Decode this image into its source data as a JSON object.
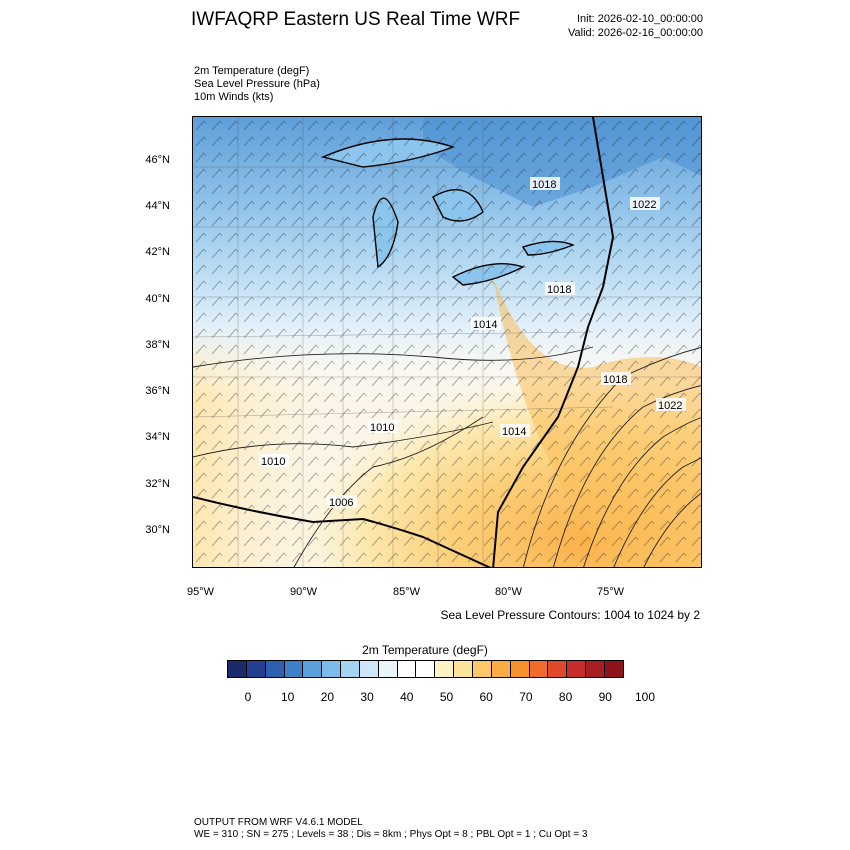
{
  "header": {
    "title": "IWFAQRP Eastern US Real Time WRF",
    "init": "Init: 2026-02-10_00:00:00",
    "valid": "Valid: 2026-02-16_00:00:00"
  },
  "fields": [
    "2m Temperature   (degF)",
    "Sea Level Pressure   (hPa)",
    "10m Winds   (kts)"
  ],
  "map": {
    "lat_labels": [
      "46°N",
      "44°N",
      "42°N",
      "40°N",
      "38°N",
      "36°N",
      "34°N",
      "32°N",
      "30°N"
    ],
    "lon_labels": [
      "95°W",
      "90°W",
      "85°W",
      "80°W",
      "75°W"
    ],
    "pressure_labels": [
      "1018",
      "1022",
      "1018",
      "1014",
      "1018",
      "1022",
      "1010",
      "1014",
      "1010",
      "1006"
    ],
    "contours_note": "Sea Level Pressure Contours: 1004 to 1024 by 2"
  },
  "colorbar": {
    "title": "2m Temperature  (degF)",
    "colors": [
      "#1b2a6b",
      "#233f8f",
      "#2f5fb0",
      "#3e80c8",
      "#5aa0dc",
      "#7dbcea",
      "#a5d3f2",
      "#cde6f8",
      "#eaf4fb",
      "#ffffff",
      "#ffffff",
      "#fff3c4",
      "#fde49a",
      "#fcc86a",
      "#fbac45",
      "#f7902e",
      "#f06c2b",
      "#e04a2c",
      "#c72d2a",
      "#a81f23",
      "#8e1419"
    ],
    "labels": [
      "0",
      "10",
      "20",
      "30",
      "40",
      "50",
      "60",
      "70",
      "80",
      "90",
      "100"
    ]
  },
  "footer": {
    "line1": "OUTPUT FROM WRF V4.6.1 MODEL",
    "line2": "WE = 310 ; SN = 275 ; Levels = 38 ; Dis = 8km ; Phys Opt = 8 ; PBL Opt = 1 ; Cu Opt = 3"
  }
}
